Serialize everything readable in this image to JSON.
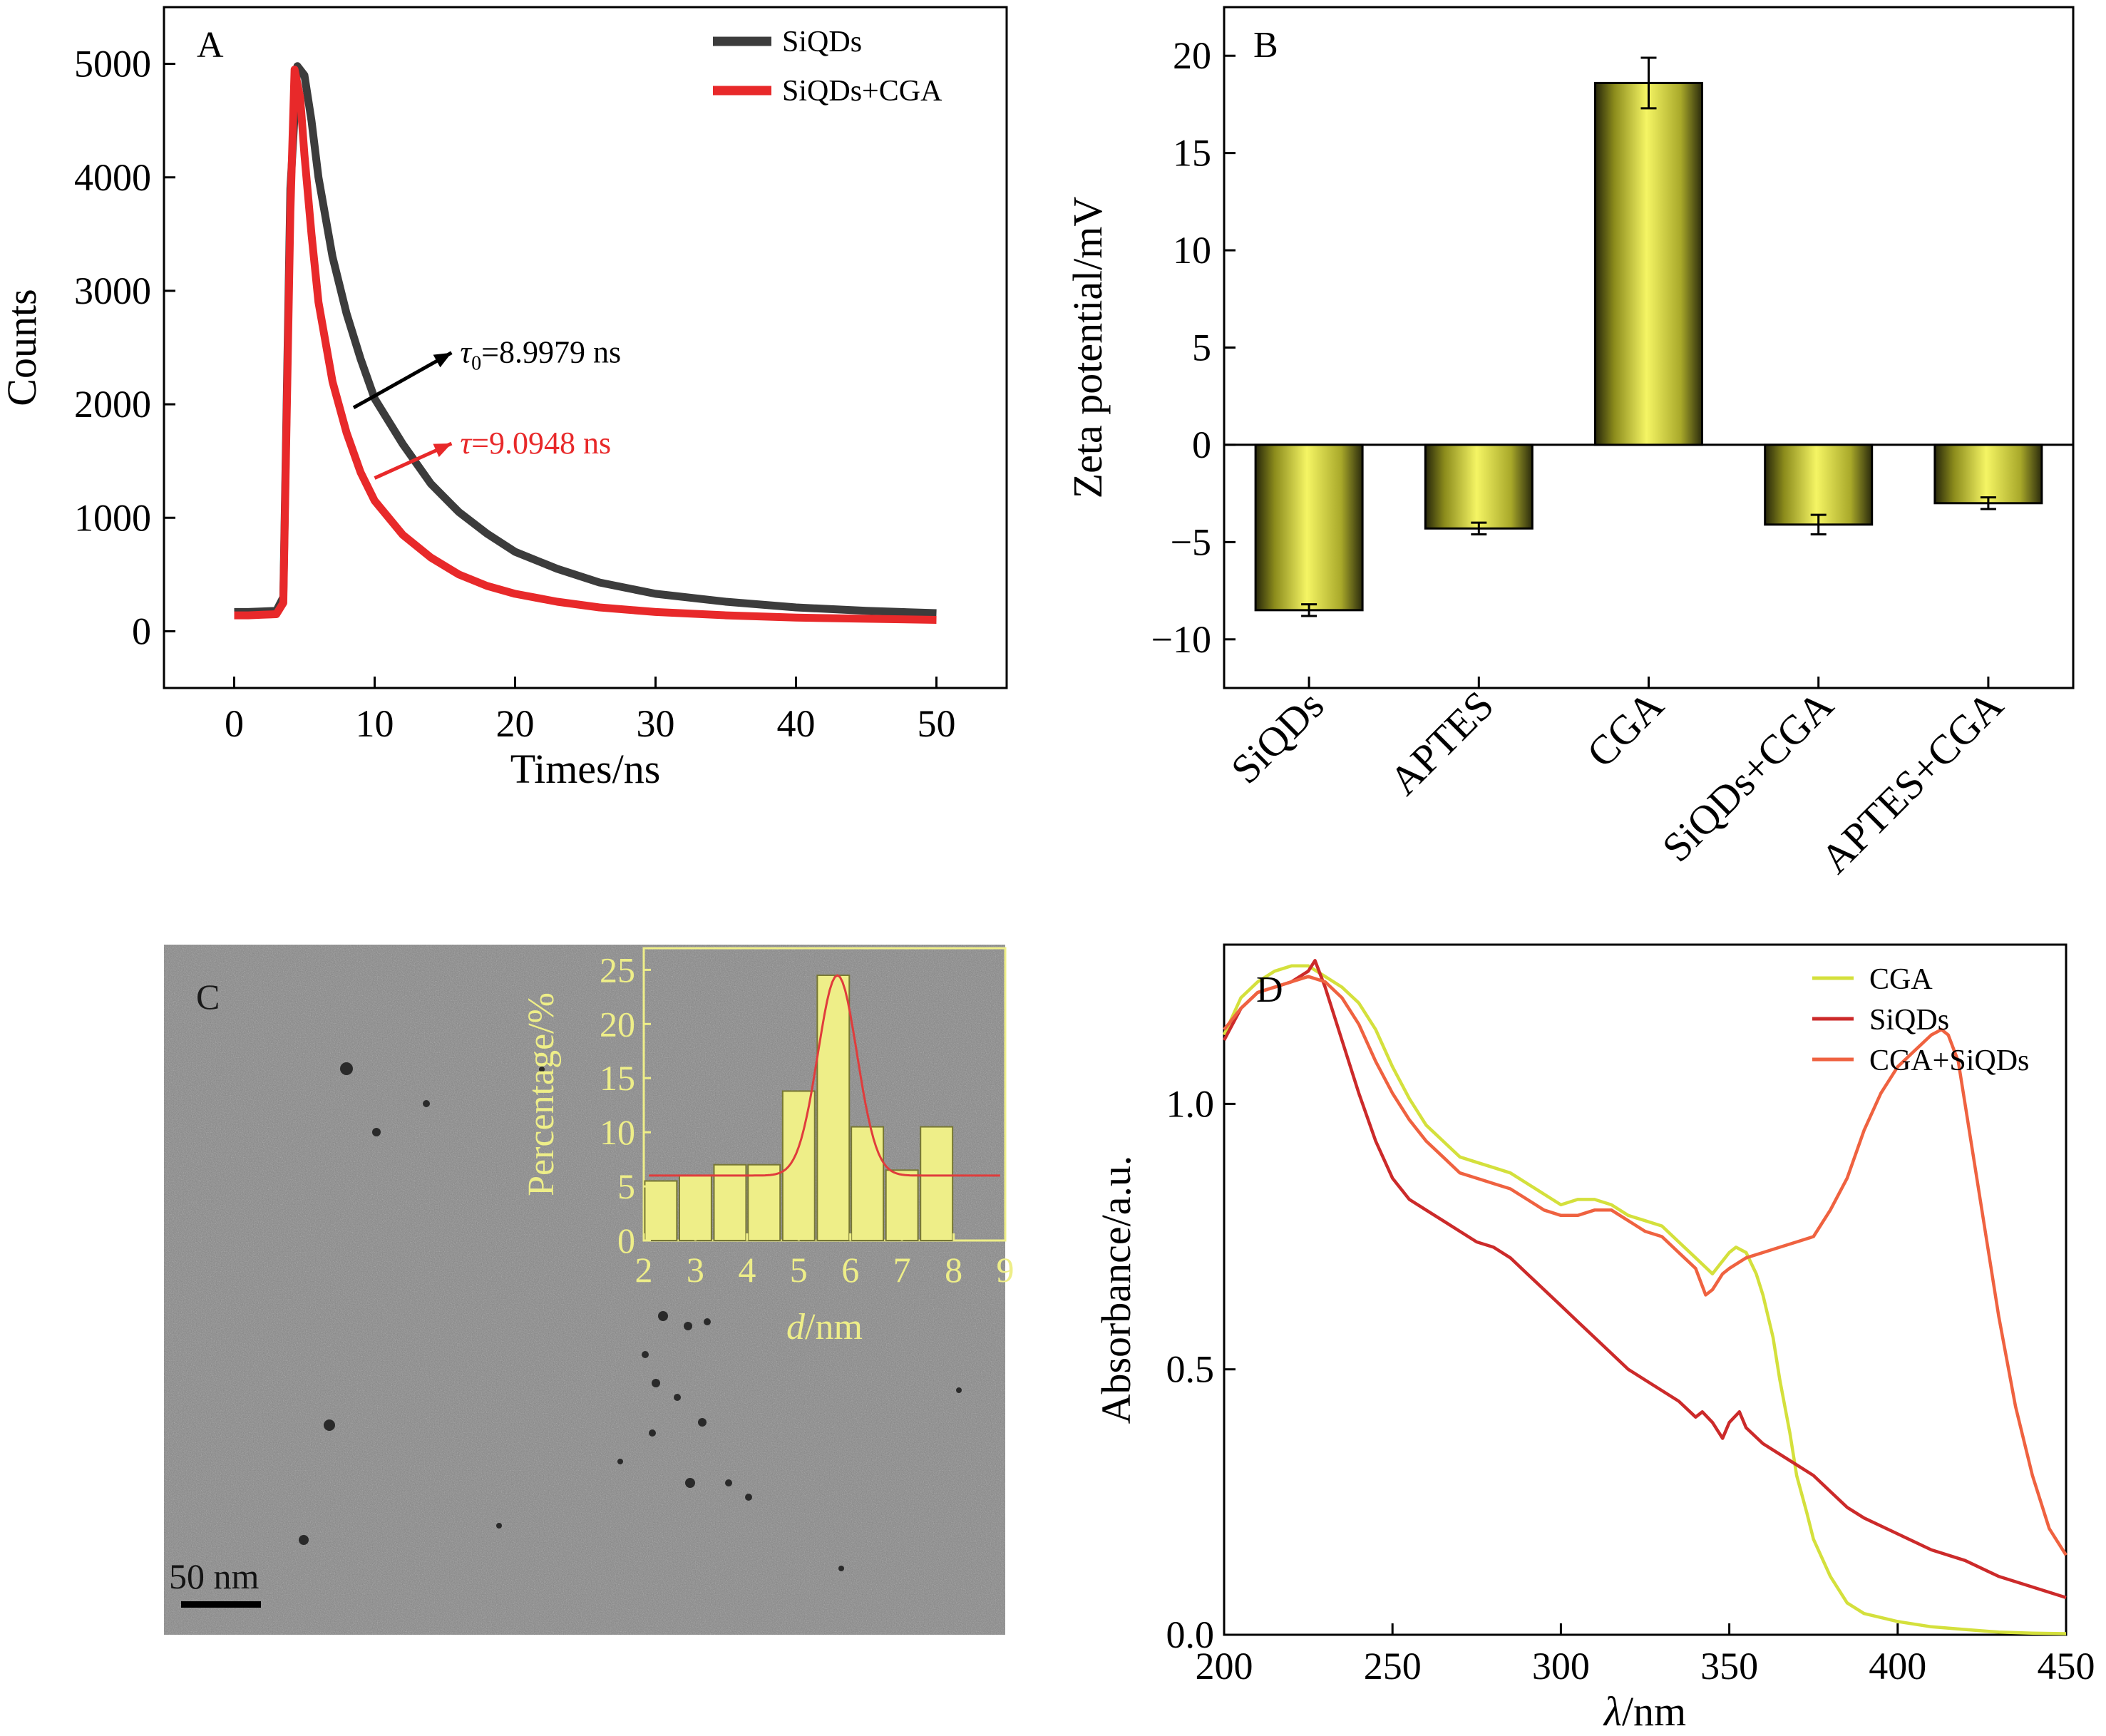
{
  "chart_data": [
    {
      "id": "A",
      "type": "line",
      "panel_label": "A",
      "xlabel": "Times/ns",
      "ylabel": "Counts",
      "xlim": [
        -5,
        55
      ],
      "ylim": [
        -500,
        5500
      ],
      "xticks": [
        0,
        10,
        20,
        30,
        40,
        50
      ],
      "yticks": [
        0,
        1000,
        2000,
        3000,
        4000,
        5000
      ],
      "legend_position": "top-right",
      "series": [
        {
          "name": "SiQDs",
          "color": "#3c3c3c",
          "x": [
            0,
            1,
            2,
            3,
            3.5,
            4,
            4.5,
            5,
            5.5,
            6,
            7,
            8,
            9,
            10,
            12,
            14,
            16,
            18,
            20,
            23,
            26,
            30,
            35,
            40,
            45,
            50
          ],
          "y": [
            170,
            170,
            175,
            180,
            300,
            3900,
            4980,
            4900,
            4500,
            4000,
            3300,
            2800,
            2400,
            2050,
            1650,
            1300,
            1050,
            860,
            700,
            550,
            430,
            330,
            260,
            210,
            180,
            160
          ]
        },
        {
          "name": "SiQDs+CGA",
          "color": "#e8292a",
          "x": [
            0,
            1,
            2,
            3,
            3.5,
            4,
            4.3,
            4.7,
            5,
            5.5,
            6,
            7,
            8,
            9,
            10,
            12,
            14,
            16,
            18,
            20,
            23,
            26,
            30,
            35,
            40,
            45,
            50
          ],
          "y": [
            140,
            140,
            145,
            150,
            250,
            3700,
            4950,
            4700,
            4200,
            3500,
            2900,
            2200,
            1750,
            1400,
            1150,
            850,
            650,
            500,
            400,
            330,
            260,
            210,
            170,
            140,
            120,
            110,
            100
          ]
        }
      ],
      "annotations": [
        {
          "symbol": "τ",
          "sub": "0",
          "text": "=8.9979 ns",
          "color": "#000000",
          "x": 17,
          "y": 2530,
          "from": [
            8.5,
            1970
          ]
        },
        {
          "symbol": "τ",
          "sub": "",
          "text": "=9.0948 ns",
          "color": "#e8292a",
          "x": 17,
          "y": 1730,
          "from": [
            10,
            1350
          ]
        }
      ]
    },
    {
      "id": "B",
      "type": "bar",
      "panel_label": "B",
      "xlabel": "",
      "ylabel": "Zeta potential/mV",
      "ylim": [
        -12.5,
        22.5
      ],
      "yticks": [
        -10,
        -5,
        0,
        5,
        10,
        15,
        20
      ],
      "ytick_labels": [
        "−10",
        "−5",
        "0",
        "5",
        "10",
        "15",
        "20"
      ],
      "categories": [
        "SiQDs",
        "APTES",
        "CGA",
        "SiQDs+CGA",
        "APTES+CGA"
      ],
      "values": [
        -8.5,
        -4.3,
        18.6,
        -4.1,
        -3.0
      ],
      "errors": [
        0.3,
        0.3,
        1.3,
        0.5,
        0.3
      ],
      "color": "#cccc33"
    },
    {
      "id": "C-inset",
      "type": "bar",
      "panel_label": "C",
      "scale_bar_label": "50 nm",
      "xlabel_italic": "d",
      "xlabel_rest": "/nm",
      "ylabel": "Percentage/%",
      "xlim": [
        2,
        9
      ],
      "ylim": [
        0,
        27
      ],
      "xticks": [
        2,
        3,
        4,
        5,
        6,
        7,
        8,
        9
      ],
      "yticks": [
        0,
        5,
        10,
        15,
        20,
        25
      ],
      "bin_centers": [
        2.33,
        3.0,
        3.67,
        4.33,
        5.0,
        5.67,
        6.33,
        7.0,
        7.67
      ],
      "values": [
        5.5,
        6.0,
        7.0,
        7.0,
        13.8,
        24.5,
        10.5,
        6.5,
        10.5
      ],
      "fit": {
        "type": "gaussian",
        "baseline": 6.0,
        "amplitude": 18.5,
        "center": 5.75,
        "sigma": 0.38,
        "color": "#e03c3c"
      },
      "color": "#eeee88"
    },
    {
      "id": "D",
      "type": "line",
      "panel_label": "D",
      "xlabel_italic": "λ",
      "xlabel_rest": "/nm",
      "ylabel": "Absorbance/a.u.",
      "xlim": [
        200,
        450
      ],
      "ylim": [
        0,
        1.3
      ],
      "xticks": [
        200,
        250,
        300,
        350,
        400,
        450
      ],
      "yticks": [
        0.0,
        0.5,
        1.0
      ],
      "ytick_labels": [
        "0.0",
        "0.5",
        "1.0"
      ],
      "legend_position": "top-right",
      "series": [
        {
          "name": "CGA",
          "color": "#d4e03c",
          "x": [
            200,
            205,
            210,
            215,
            220,
            225,
            230,
            235,
            240,
            245,
            250,
            255,
            260,
            265,
            270,
            275,
            280,
            285,
            290,
            295,
            300,
            305,
            310,
            315,
            320,
            325,
            330,
            335,
            340,
            345,
            350,
            352,
            355,
            358,
            360,
            363,
            365,
            368,
            370,
            373,
            375,
            380,
            385,
            390,
            400,
            410,
            420,
            430,
            440,
            450
          ],
          "y": [
            1.13,
            1.2,
            1.23,
            1.25,
            1.26,
            1.26,
            1.24,
            1.22,
            1.19,
            1.14,
            1.07,
            1.01,
            0.96,
            0.93,
            0.9,
            0.89,
            0.88,
            0.87,
            0.85,
            0.83,
            0.81,
            0.82,
            0.82,
            0.81,
            0.79,
            0.78,
            0.77,
            0.74,
            0.71,
            0.68,
            0.72,
            0.73,
            0.72,
            0.68,
            0.64,
            0.56,
            0.48,
            0.38,
            0.3,
            0.23,
            0.18,
            0.11,
            0.06,
            0.04,
            0.025,
            0.015,
            0.01,
            0.005,
            0.003,
            0.002
          ]
        },
        {
          "name": "SiQDs",
          "color": "#cc2a2a",
          "x": [
            200,
            205,
            210,
            215,
            220,
            225,
            227,
            230,
            235,
            240,
            245,
            250,
            255,
            260,
            265,
            270,
            275,
            280,
            285,
            290,
            295,
            300,
            305,
            310,
            315,
            320,
            325,
            330,
            335,
            340,
            342,
            345,
            348,
            350,
            353,
            355,
            360,
            365,
            370,
            375,
            380,
            385,
            390,
            400,
            410,
            420,
            430,
            440,
            450
          ],
          "y": [
            1.12,
            1.18,
            1.21,
            1.22,
            1.23,
            1.25,
            1.27,
            1.22,
            1.12,
            1.02,
            0.93,
            0.86,
            0.82,
            0.8,
            0.78,
            0.76,
            0.74,
            0.73,
            0.71,
            0.68,
            0.65,
            0.62,
            0.59,
            0.56,
            0.53,
            0.5,
            0.48,
            0.46,
            0.44,
            0.41,
            0.42,
            0.4,
            0.37,
            0.4,
            0.42,
            0.39,
            0.36,
            0.34,
            0.32,
            0.3,
            0.27,
            0.24,
            0.22,
            0.19,
            0.16,
            0.14,
            0.11,
            0.09,
            0.07
          ]
        },
        {
          "name": "CGA+SiQDs",
          "color": "#ef6240",
          "x": [
            200,
            205,
            210,
            215,
            220,
            225,
            230,
            235,
            240,
            245,
            250,
            255,
            260,
            265,
            270,
            275,
            280,
            285,
            290,
            295,
            300,
            305,
            310,
            315,
            320,
            325,
            330,
            335,
            340,
            343,
            345,
            348,
            350,
            355,
            360,
            365,
            370,
            375,
            380,
            385,
            390,
            395,
            400,
            405,
            410,
            413,
            415,
            418,
            420,
            425,
            430,
            435,
            440,
            445,
            450
          ],
          "y": [
            1.14,
            1.18,
            1.21,
            1.22,
            1.23,
            1.24,
            1.23,
            1.2,
            1.15,
            1.08,
            1.02,
            0.97,
            0.93,
            0.9,
            0.87,
            0.86,
            0.85,
            0.84,
            0.82,
            0.8,
            0.79,
            0.79,
            0.8,
            0.8,
            0.78,
            0.76,
            0.75,
            0.72,
            0.69,
            0.64,
            0.65,
            0.68,
            0.69,
            0.71,
            0.72,
            0.73,
            0.74,
            0.75,
            0.8,
            0.86,
            0.95,
            1.02,
            1.07,
            1.1,
            1.13,
            1.14,
            1.13,
            1.08,
            1.0,
            0.8,
            0.6,
            0.43,
            0.3,
            0.2,
            0.15
          ]
        }
      ]
    }
  ]
}
